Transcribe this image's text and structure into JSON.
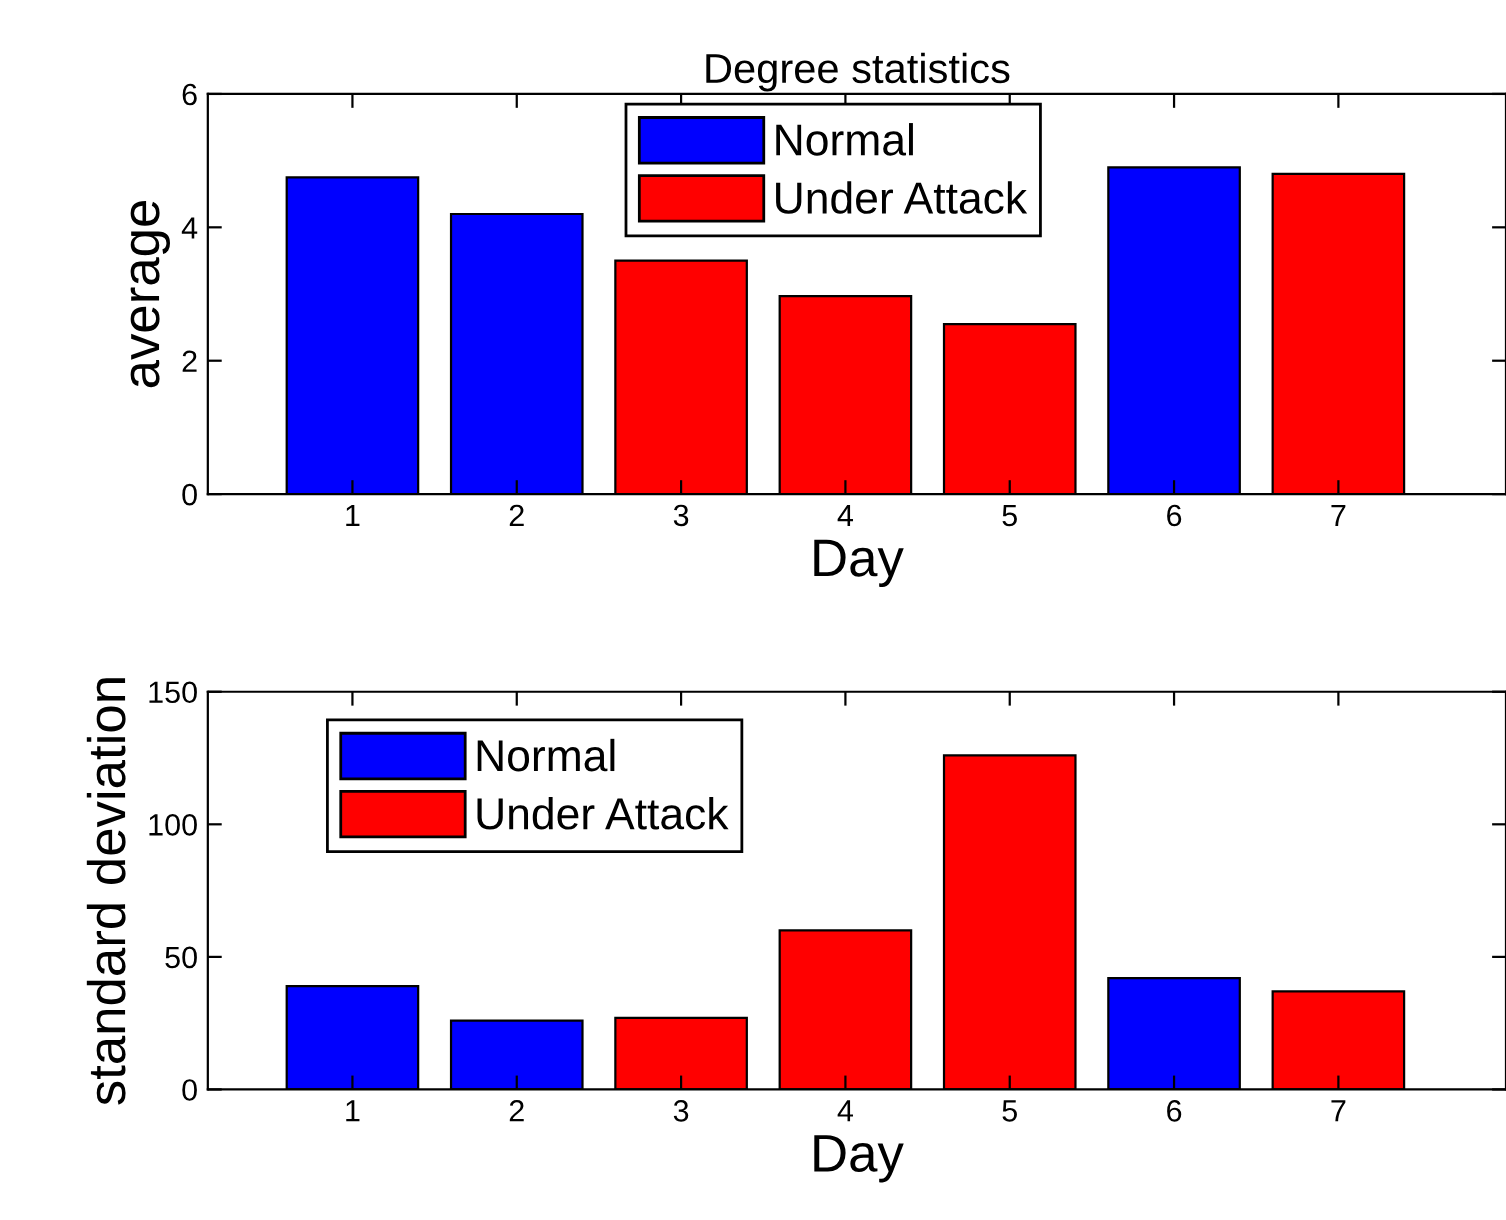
{
  "chart_data": [
    {
      "type": "bar",
      "title": "Degree statistics",
      "xlabel": "Day",
      "ylabel": "average",
      "categories": [
        "1",
        "2",
        "3",
        "4",
        "5",
        "6",
        "7"
      ],
      "series": [
        {
          "name": "Normal",
          "color": "#0000ff",
          "values": [
            4.75,
            4.2,
            null,
            null,
            null,
            4.9,
            null
          ]
        },
        {
          "name": "Under Attack",
          "color": "#ff0000",
          "values": [
            null,
            null,
            3.5,
            2.97,
            2.55,
            null,
            4.8
          ]
        }
      ],
      "ylim": [
        0,
        6
      ],
      "yticks": [
        0,
        2,
        4,
        6
      ],
      "legend": "top",
      "grid": false
    },
    {
      "type": "bar",
      "xlabel": "Day",
      "ylabel": "standard deviation",
      "categories": [
        "1",
        "2",
        "3",
        "4",
        "5",
        "6",
        "7"
      ],
      "series": [
        {
          "name": "Normal",
          "color": "#0000ff",
          "values": [
            39,
            26,
            null,
            null,
            null,
            42,
            null
          ]
        },
        {
          "name": "Under Attack",
          "color": "#ff0000",
          "values": [
            null,
            null,
            27,
            60,
            126,
            null,
            37
          ]
        }
      ],
      "ylim": [
        0,
        150
      ],
      "yticks": [
        0,
        50,
        100,
        150
      ],
      "legend": "top left",
      "grid": false
    }
  ]
}
